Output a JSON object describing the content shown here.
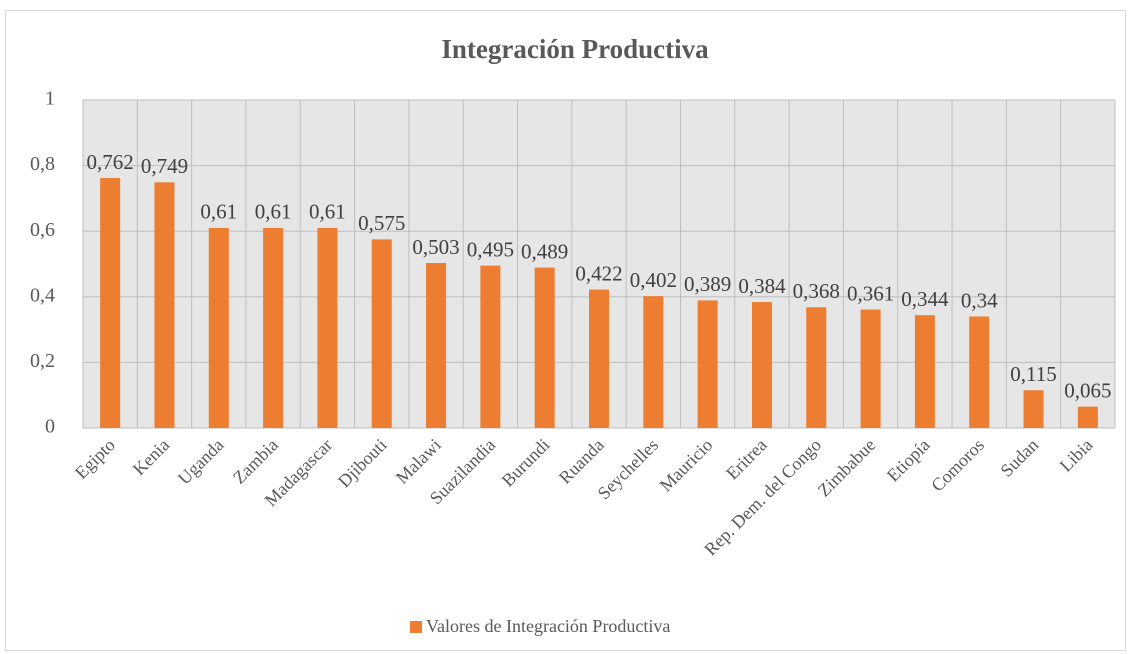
{
  "chart_data": {
    "type": "bar",
    "title": "Integración Productiva",
    "categories": [
      "Egipto",
      "Kenia",
      "Uganda",
      "Zambia",
      "Madagascar",
      "Djibouti",
      "Malawi",
      "Suazilandia",
      "Burundi",
      "Ruanda",
      "Seychelles",
      "Mauricio",
      "Eritrea",
      "Rep. Dem. del Congo",
      "Zimbabue",
      "Etiopía",
      "Comoros",
      "Sudan",
      "Libia"
    ],
    "series": [
      {
        "name": "Valores de Integración Productiva",
        "color": "#ed7d31",
        "values": [
          0.762,
          0.749,
          0.61,
          0.61,
          0.61,
          0.575,
          0.503,
          0.495,
          0.489,
          0.422,
          0.402,
          0.389,
          0.384,
          0.368,
          0.361,
          0.344,
          0.34,
          0.115,
          0.065
        ],
        "value_labels": [
          "0,762",
          "0,749",
          "0,61",
          "0,61",
          "0,61",
          "0,575",
          "0,503",
          "0,495",
          "0,489",
          "0,422",
          "0,402",
          "0,389",
          "0,384",
          "0,368",
          "0,361",
          "0,344",
          "0,34",
          "0,115",
          "0,065"
        ]
      }
    ],
    "ylim": [
      0,
      1
    ],
    "yticks": [
      0,
      {
        "value": 0.2,
        "label": "0,2"
      },
      {
        "value": 0.4,
        "label": "0,4"
      },
      {
        "value": 0.6,
        "label": "0,6"
      },
      {
        "value": 0.8,
        "label": "0,8"
      },
      1
    ],
    "grid": true,
    "legend": "bottom"
  }
}
